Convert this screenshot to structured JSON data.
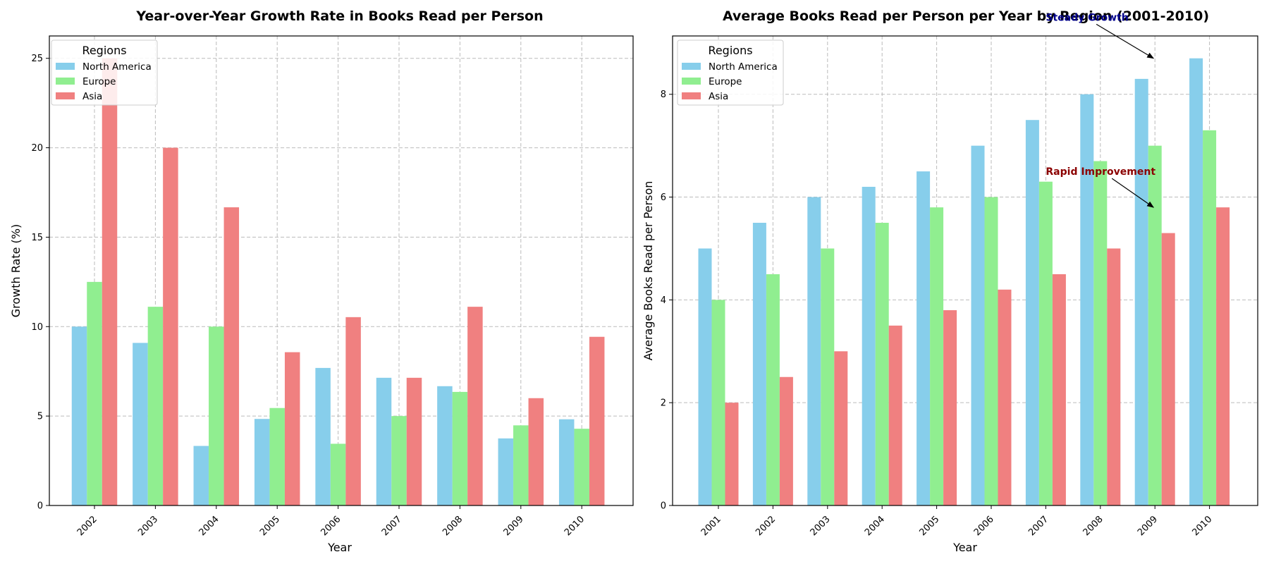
{
  "colors": {
    "North America": "#87ceeb",
    "Europe": "#90ee90",
    "Asia": "#f08080"
  },
  "chart_data": [
    {
      "type": "bar",
      "title": "Year-over-Year Growth Rate in Books Read per Person",
      "xlabel": "Year",
      "ylabel": "Growth Rate (%)",
      "categories": [
        "2002",
        "2003",
        "2004",
        "2005",
        "2006",
        "2007",
        "2008",
        "2009",
        "2010"
      ],
      "series": [
        {
          "name": "North America",
          "values": [
            10.0,
            9.09,
            3.33,
            4.84,
            7.69,
            7.14,
            6.67,
            3.75,
            4.82
          ]
        },
        {
          "name": "Europe",
          "values": [
            12.5,
            11.11,
            10.0,
            5.45,
            3.45,
            5.0,
            6.35,
            4.48,
            4.29
          ]
        },
        {
          "name": "Asia",
          "values": [
            25.0,
            20.0,
            16.67,
            8.57,
            10.53,
            7.14,
            11.11,
            6.0,
            9.43
          ]
        }
      ],
      "ylim": [
        0,
        26.25
      ],
      "yticks": [
        0,
        5,
        10,
        15,
        20,
        25
      ],
      "grid": true,
      "legend": {
        "title": "Regions",
        "position": "upper-left"
      }
    },
    {
      "type": "bar",
      "title": "Average Books Read per Person per Year by Region (2001-2010)",
      "xlabel": "Year",
      "ylabel": "Average Books Read per Person",
      "categories": [
        "2001",
        "2002",
        "2003",
        "2004",
        "2005",
        "2006",
        "2007",
        "2008",
        "2009",
        "2010"
      ],
      "series": [
        {
          "name": "North America",
          "values": [
            5.0,
            5.5,
            6.0,
            6.2,
            6.5,
            7.0,
            7.5,
            8.0,
            8.3,
            8.7
          ]
        },
        {
          "name": "Europe",
          "values": [
            4.0,
            4.5,
            5.0,
            5.5,
            5.8,
            6.0,
            6.3,
            6.7,
            7.0,
            7.3
          ]
        },
        {
          "name": "Asia",
          "values": [
            2.0,
            2.5,
            3.0,
            3.5,
            3.8,
            4.2,
            4.5,
            5.0,
            5.3,
            5.8
          ]
        }
      ],
      "ylim": [
        0,
        9.135
      ],
      "yticks": [
        0,
        2,
        4,
        6,
        8
      ],
      "grid": true,
      "legend": {
        "title": "Regions",
        "position": "upper-left"
      },
      "annotations": [
        {
          "text": "Steady Growth",
          "color": "#00008b",
          "xy": [
            "2009",
            8.7
          ],
          "xytext": [
            "2007",
            9.5
          ]
        },
        {
          "text": "Rapid Improvement",
          "color": "#8b0000",
          "xy": [
            "2009",
            5.8
          ],
          "xytext": [
            "2007",
            6.5
          ]
        }
      ]
    }
  ]
}
